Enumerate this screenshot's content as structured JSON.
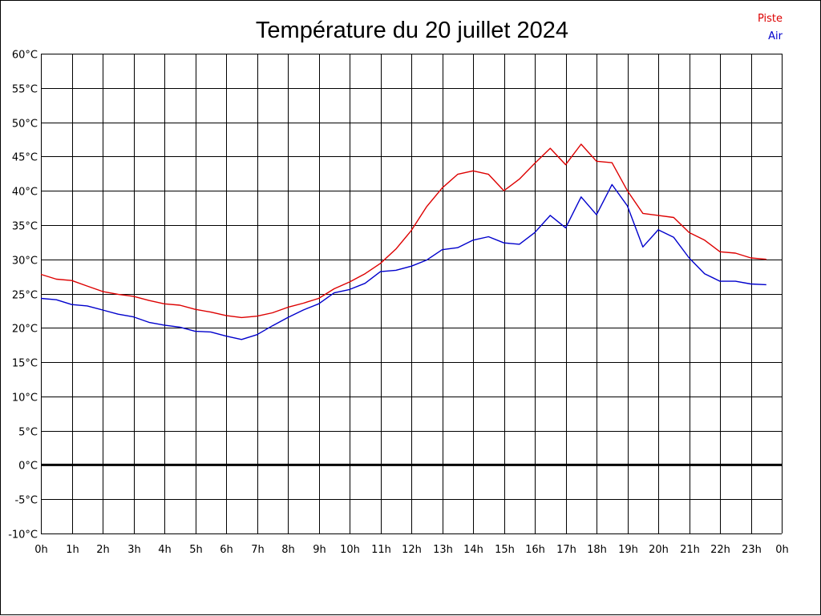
{
  "chart_data": {
    "type": "line",
    "title": "Température du 20 juillet 2024",
    "xlabel": "",
    "ylabel": "",
    "grid": true,
    "legend_position": "top-right",
    "xlim": [
      0,
      24
    ],
    "ylim": [
      -10,
      60
    ],
    "x_ticks": [
      0,
      1,
      2,
      3,
      4,
      5,
      6,
      7,
      8,
      9,
      10,
      11,
      12,
      13,
      14,
      15,
      16,
      17,
      18,
      19,
      20,
      21,
      22,
      23,
      24
    ],
    "x_tick_labels": [
      "0h",
      "1h",
      "2h",
      "3h",
      "4h",
      "5h",
      "6h",
      "7h",
      "8h",
      "9h",
      "10h",
      "11h",
      "12h",
      "13h",
      "14h",
      "15h",
      "16h",
      "17h",
      "18h",
      "19h",
      "20h",
      "21h",
      "22h",
      "23h",
      "0h"
    ],
    "y_ticks": [
      60,
      55,
      50,
      45,
      40,
      35,
      30,
      25,
      20,
      15,
      10,
      5,
      0,
      -5,
      -10
    ],
    "y_tick_labels": [
      "60°C",
      "55°C",
      "50°C",
      "45°C",
      "40°C",
      "35°C",
      "30°C",
      "25°C",
      "20°C",
      "15°C",
      "10°C",
      "5°C",
      "0°C",
      "-5°C",
      "-10°C"
    ],
    "zero_line": 0,
    "series": [
      {
        "name": "Piste",
        "color": "#dd0000",
        "x": [
          0,
          0.5,
          1,
          1.5,
          2,
          2.5,
          3,
          3.5,
          4,
          4.5,
          5,
          5.5,
          6,
          6.5,
          7,
          7.5,
          8,
          8.5,
          9,
          9.5,
          10,
          10.5,
          11,
          11.5,
          12,
          12.5,
          13,
          13.5,
          14,
          14.5,
          15,
          15.5,
          16,
          16.5,
          17,
          17.5,
          18,
          18.5,
          19,
          19.5,
          20,
          20.5,
          21,
          21.5,
          22,
          22.5,
          23,
          23.5
        ],
        "values": [
          27.8,
          27.1,
          26.9,
          26.1,
          25.3,
          24.9,
          24.6,
          24.0,
          23.5,
          23.3,
          22.7,
          22.3,
          21.8,
          21.5,
          21.7,
          22.2,
          23.0,
          23.6,
          24.3,
          25.7,
          26.7,
          27.9,
          29.4,
          31.5,
          34.2,
          37.7,
          40.4,
          42.4,
          42.9,
          42.4,
          40.0,
          41.7,
          44.0,
          46.2,
          43.8,
          46.8,
          44.3,
          44.1,
          40.0,
          36.7,
          36.4,
          36.1,
          33.9,
          32.8,
          31.1,
          30.9,
          30.2,
          30.0
        ]
      },
      {
        "name": "Air",
        "color": "#0000cc",
        "x": [
          0,
          0.5,
          1,
          1.5,
          2,
          2.5,
          3,
          3.5,
          4,
          4.5,
          5,
          5.5,
          6,
          6.5,
          7,
          7.5,
          8,
          8.5,
          9,
          9.5,
          10,
          10.5,
          11,
          11.5,
          12,
          12.5,
          13,
          13.5,
          14,
          14.5,
          15,
          15.5,
          16,
          16.5,
          17,
          17.5,
          18,
          18.5,
          19,
          19.5,
          20,
          20.5,
          21,
          21.5,
          22,
          22.5,
          23,
          23.5
        ],
        "values": [
          24.3,
          24.1,
          23.4,
          23.2,
          22.6,
          22.0,
          21.6,
          20.8,
          20.4,
          20.1,
          19.5,
          19.4,
          18.8,
          18.3,
          19.0,
          20.3,
          21.5,
          22.6,
          23.5,
          25.1,
          25.6,
          26.5,
          28.2,
          28.4,
          29.0,
          29.9,
          31.4,
          31.7,
          32.8,
          33.3,
          32.4,
          32.2,
          33.9,
          36.4,
          34.6,
          39.1,
          36.5,
          40.9,
          37.8,
          31.8,
          34.3,
          33.2,
          30.2,
          27.9,
          26.8,
          26.8,
          26.4,
          26.3
        ]
      }
    ]
  }
}
